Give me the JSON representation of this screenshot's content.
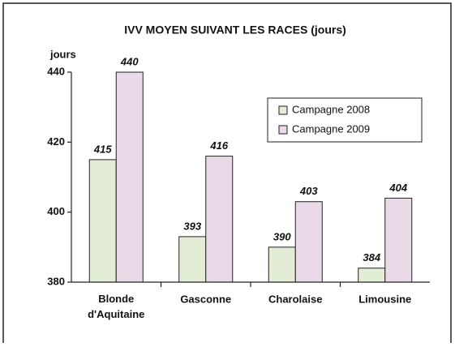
{
  "chart_data": {
    "type": "bar",
    "title": "IVV MOYEN SUIVANT LES RACES (jours)",
    "y_label": "jours",
    "categories": [
      "Blonde d'Aquitaine",
      "Gasconne",
      "Charolaise",
      "Limousine"
    ],
    "series": [
      {
        "name": "Campagne 2008",
        "color": "#e3ecd4",
        "values": [
          415,
          393,
          390,
          384
        ]
      },
      {
        "name": "Campagne 2009",
        "color": "#ead9e6",
        "values": [
          440,
          416,
          403,
          404
        ]
      }
    ],
    "ylim": [
      380,
      440
    ],
    "yticks": [
      380,
      400,
      420,
      440
    ],
    "grid": false,
    "legend": "upper right"
  }
}
